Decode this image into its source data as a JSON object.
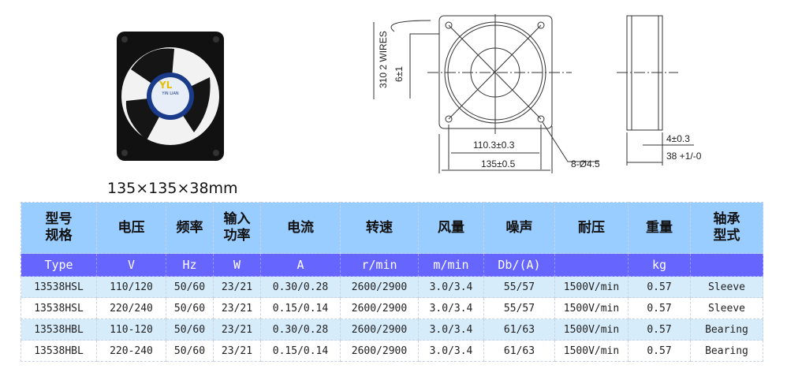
{
  "product": {
    "size_caption": "135×135×38mm",
    "logo_text": "YL",
    "brand_text": "YIN LIAN"
  },
  "drawing": {
    "wires": "310 2 WIRES",
    "strip": "6±1",
    "hole_pitch": "110.3±0.3",
    "frame": "135±0.5",
    "holes": "8-Ø4.5",
    "flange": "4±0.3",
    "depth": "38 +1/-0"
  },
  "table": {
    "headers": [
      "型号\n规格",
      "电压",
      "频率",
      "输入\n功率",
      "电流",
      "转速",
      "风量",
      "噪声",
      "耐压",
      "重量",
      "轴承\n型式"
    ],
    "units": [
      "Type",
      "V",
      "Hz",
      "W",
      "A",
      "r/min",
      "m/min",
      "Db/(A)",
      "",
      "kg",
      ""
    ],
    "rows": [
      [
        "13538HSL",
        "110/120",
        "50/60",
        "23/21",
        "0.30/0.28",
        "2600/2900",
        "3.0/3.4",
        "55/57",
        "1500V/min",
        "0.57",
        "Sleeve"
      ],
      [
        "13538HSL",
        "220/240",
        "50/60",
        "23/21",
        "0.15/0.14",
        "2600/2900",
        "3.0/3.4",
        "55/57",
        "1500V/min",
        "0.57",
        "Sleeve"
      ],
      [
        "13538HBL",
        "110-120",
        "50/60",
        "23/21",
        "0.30/0.28",
        "2600/2900",
        "3.0/3.4",
        "61/63",
        "1500V/min",
        "0.57",
        "Bearing"
      ],
      [
        "13538HBL",
        "220-240",
        "50/60",
        "23/21",
        "0.15/0.14",
        "2600/2900",
        "3.0/3.4",
        "61/63",
        "1500V/min",
        "0.57",
        "Bearing"
      ]
    ]
  },
  "colors": {
    "header_bg": "#99ccff",
    "units_bg": "#6666ff",
    "row_alt": "#d6ecfb"
  }
}
